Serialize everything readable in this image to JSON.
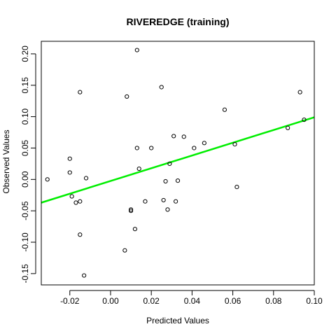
{
  "chart_data": {
    "type": "scatter",
    "title": "RIVEREDGE (training)",
    "xlabel": "Predicted Values",
    "ylabel": "Observed Values",
    "xlim": [
      -0.034,
      0.1
    ],
    "ylim": [
      -0.168,
      0.22
    ],
    "xticks": [
      -0.02,
      0.0,
      0.02,
      0.04,
      0.06,
      0.08,
      0.1
    ],
    "xtick_labels": [
      "-0.02",
      "0.00",
      "0.02",
      "0.04",
      "0.06",
      "0.08",
      "0.10"
    ],
    "yticks": [
      -0.15,
      -0.1,
      -0.05,
      0.0,
      0.05,
      0.1,
      0.15,
      0.2
    ],
    "ytick_labels": [
      "-0.15",
      "-0.10",
      "-0.05",
      "0.00",
      "0.05",
      "0.10",
      "0.15",
      "0.20"
    ],
    "grid": false,
    "points": [
      {
        "x": -0.031,
        "y": 0.0
      },
      {
        "x": -0.02,
        "y": 0.033
      },
      {
        "x": -0.02,
        "y": 0.011
      },
      {
        "x": -0.019,
        "y": -0.027
      },
      {
        "x": -0.017,
        "y": -0.037
      },
      {
        "x": -0.015,
        "y": -0.035
      },
      {
        "x": -0.015,
        "y": 0.139
      },
      {
        "x": -0.015,
        "y": -0.088
      },
      {
        "x": -0.013,
        "y": -0.153
      },
      {
        "x": -0.012,
        "y": 0.002
      },
      {
        "x": 0.007,
        "y": -0.113
      },
      {
        "x": 0.008,
        "y": 0.132
      },
      {
        "x": 0.01,
        "y": -0.05
      },
      {
        "x": 0.01,
        "y": -0.048
      },
      {
        "x": 0.012,
        "y": -0.079
      },
      {
        "x": 0.013,
        "y": 0.206
      },
      {
        "x": 0.013,
        "y": 0.05
      },
      {
        "x": 0.014,
        "y": 0.017
      },
      {
        "x": 0.017,
        "y": -0.035
      },
      {
        "x": 0.02,
        "y": 0.05
      },
      {
        "x": 0.025,
        "y": 0.147
      },
      {
        "x": 0.026,
        "y": -0.033
      },
      {
        "x": 0.027,
        "y": -0.003
      },
      {
        "x": 0.028,
        "y": -0.048
      },
      {
        "x": 0.029,
        "y": 0.025
      },
      {
        "x": 0.031,
        "y": 0.069
      },
      {
        "x": 0.032,
        "y": -0.035
      },
      {
        "x": 0.033,
        "y": -0.002
      },
      {
        "x": 0.036,
        "y": 0.068
      },
      {
        "x": 0.041,
        "y": 0.05
      },
      {
        "x": 0.046,
        "y": 0.058
      },
      {
        "x": 0.056,
        "y": 0.111
      },
      {
        "x": 0.061,
        "y": 0.056
      },
      {
        "x": 0.062,
        "y": -0.012
      },
      {
        "x": 0.087,
        "y": 0.082
      },
      {
        "x": 0.093,
        "y": 0.139
      },
      {
        "x": 0.095,
        "y": 0.095
      }
    ],
    "fit_line": {
      "color": "#00ee00",
      "x": [
        -0.034,
        0.1
      ],
      "y": [
        -0.037,
        0.099
      ]
    },
    "point_color": "#000000"
  }
}
